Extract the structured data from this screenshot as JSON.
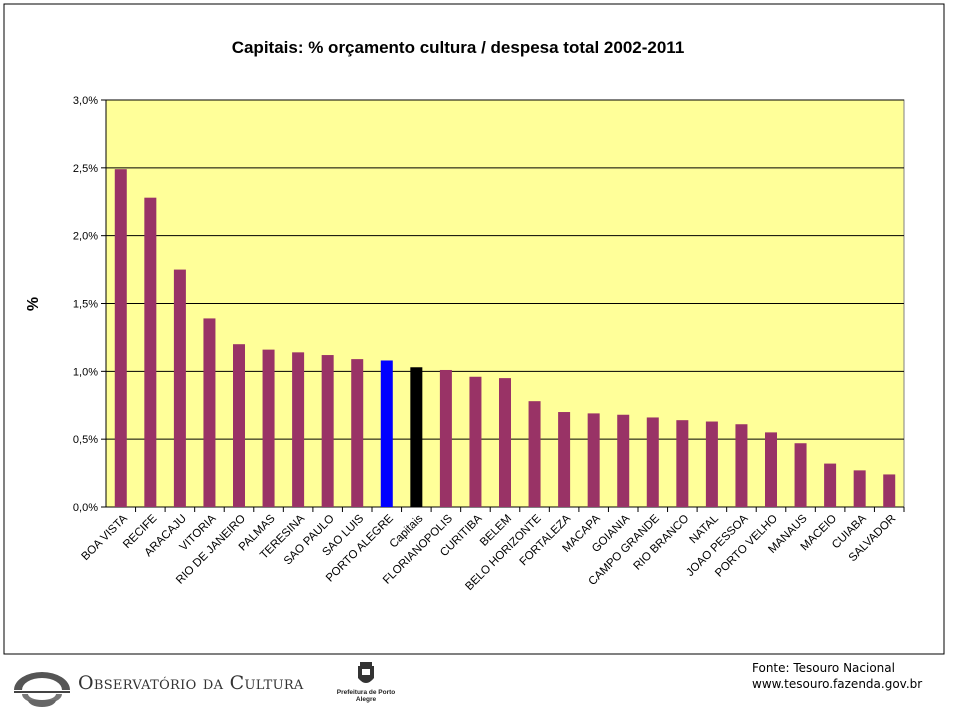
{
  "chart_data": {
    "type": "bar",
    "title": "Capitais: % orçamento cultura / despesa total 2002-2011",
    "xlabel": "",
    "ylabel": "%",
    "ylim": [
      0,
      3.0
    ],
    "yticks": [
      "0,0%",
      "0,5%",
      "1,0%",
      "1,5%",
      "2,0%",
      "2,5%",
      "3,0%"
    ],
    "grid": true,
    "plot_background": "#FFFF99",
    "categories": [
      "BOA VISTA",
      "RECIFE",
      "ARACAJU",
      "VITORIA",
      "RIO DE JANEIRO",
      "PALMAS",
      "TERESINA",
      "SAO PAULO",
      "SAO LUIS",
      "PORTO ALEGRE",
      "Capitais",
      "FLORIANOPOLIS",
      "CURITIBA",
      "BELEM",
      "BELO HORIZONTE",
      "FORTALEZA",
      "MACAPA",
      "GOIANIA",
      "CAMPO GRANDE",
      "RIO BRANCO",
      "NATAL",
      "JOAO PESSOA",
      "PORTO VELHO",
      "MANAUS",
      "MACEIO",
      "CUIABA",
      "SALVADOR"
    ],
    "values": [
      2.49,
      2.28,
      1.75,
      1.39,
      1.2,
      1.16,
      1.14,
      1.12,
      1.09,
      1.08,
      1.03,
      1.01,
      0.96,
      0.95,
      0.78,
      0.7,
      0.69,
      0.68,
      0.66,
      0.64,
      0.63,
      0.61,
      0.55,
      0.47,
      0.32,
      0.27,
      0.24
    ],
    "colors": {
      "default": "#993366",
      "highlight": {
        "PORTO ALEGRE": "#0000FF",
        "Capitais": "#000000"
      }
    }
  },
  "footer": {
    "logo_text": "Observatório da Cultura",
    "logo_icon": "observatorio-logo-icon",
    "prefeitura_icon": "prefeitura-coat-of-arms-icon",
    "prefeitura_text": "Prefeitura de Porto Alegre",
    "source_line1": "Fonte: Tesouro Nacional",
    "source_line2": "www.tesouro.fazenda.gov.br"
  }
}
